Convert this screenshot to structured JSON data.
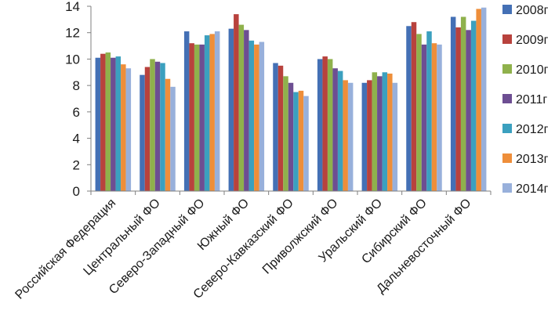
{
  "chart_data": {
    "type": "bar",
    "title": "",
    "xlabel": "",
    "ylabel": "",
    "ylim": [
      0,
      14
    ],
    "yticks": [
      0,
      2,
      4,
      6,
      8,
      10,
      12,
      14
    ],
    "grid": false,
    "legend_position": "right",
    "categories": [
      "Российская Федерация",
      "Центральный ФО",
      "Северо-Западный ФО",
      "Южный ФО",
      "Северо-Кавказский ФО",
      "Приволжский ФО",
      "Уральский ФО",
      "Сибирский ФО",
      "Дальневосточный ФО"
    ],
    "series": [
      {
        "name": "2008г",
        "color": "#4470B5",
        "values": [
          10.1,
          8.8,
          12.1,
          12.3,
          9.7,
          10.0,
          8.2,
          12.5,
          13.2
        ]
      },
      {
        "name": "2009г",
        "color": "#B8423D",
        "values": [
          10.4,
          9.4,
          11.2,
          13.4,
          9.5,
          10.2,
          8.4,
          12.8,
          12.4
        ]
      },
      {
        "name": "2010г",
        "color": "#8FB14C",
        "values": [
          10.5,
          10.0,
          11.1,
          12.6,
          8.7,
          10.0,
          9.0,
          11.9,
          13.2
        ]
      },
      {
        "name": "2011г",
        "color": "#6D4E92",
        "values": [
          10.1,
          9.8,
          11.1,
          12.2,
          8.2,
          9.3,
          8.7,
          11.1,
          12.2
        ]
      },
      {
        "name": "2012г",
        "color": "#3BA0BF",
        "values": [
          10.2,
          9.7,
          11.8,
          11.4,
          7.5,
          9.1,
          9.0,
          12.1,
          12.9
        ]
      },
      {
        "name": "2013г",
        "color": "#EE8E3A",
        "values": [
          9.6,
          8.5,
          11.9,
          11.1,
          7.6,
          8.4,
          8.9,
          11.2,
          13.8
        ]
      },
      {
        "name": "2014г",
        "color": "#98B0DB",
        "values": [
          9.3,
          7.9,
          12.1,
          11.3,
          7.2,
          8.2,
          8.2,
          11.1,
          13.9
        ]
      }
    ]
  }
}
